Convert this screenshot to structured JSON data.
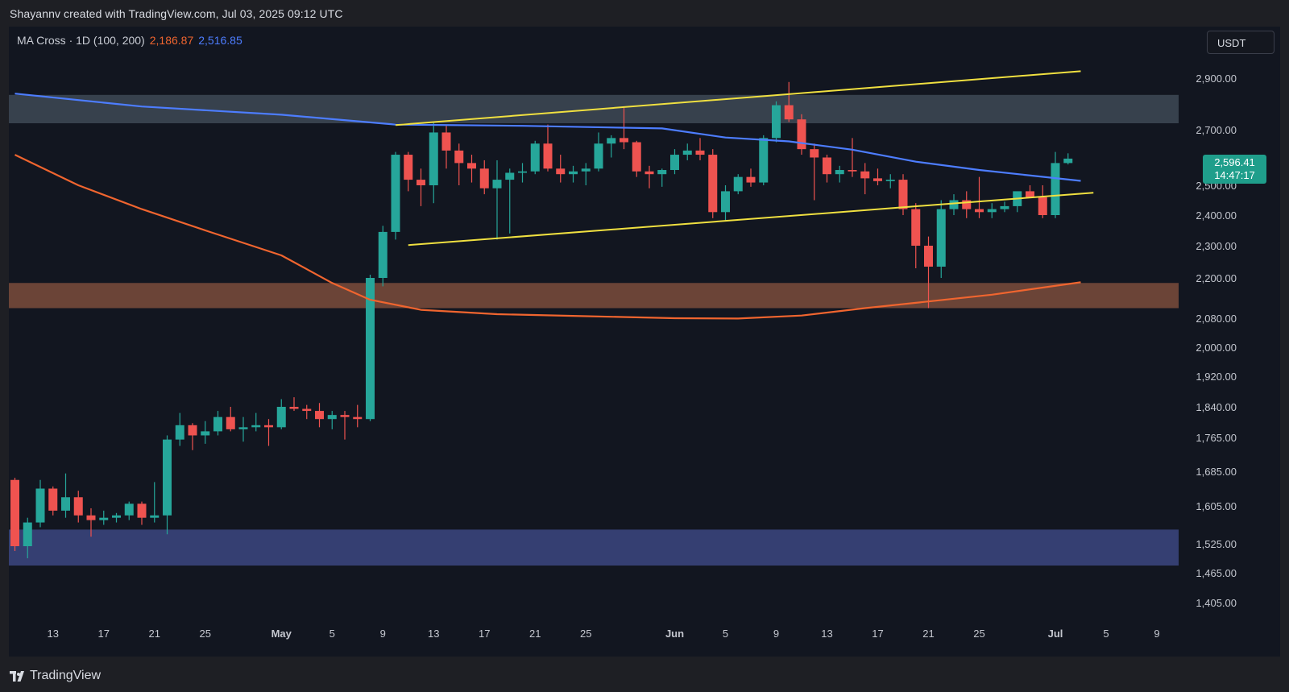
{
  "header": {
    "credit": "Shayannv created with TradingView.com, Jul 03, 2025 09:12 UTC"
  },
  "legend": {
    "indicator": "MA Cross · 1D (100, 200)",
    "ma100_value": "2,186.87",
    "ma200_value": "2,516.85",
    "ma100_color": "#f0652f",
    "ma200_color": "#4d7dff"
  },
  "currency_button": {
    "label": "USDT"
  },
  "price_tag": {
    "price": "2,596.41",
    "countdown": "14:47:17",
    "color": "#1f9e8b"
  },
  "footer": {
    "brand": "TradingView",
    "logo_icon": "tradingview-logo-icon"
  },
  "colors": {
    "up": "#26a69a",
    "down": "#ef5350",
    "background": "#121620",
    "upper_zone": "#37414d",
    "middle_zone": "#6b4437",
    "lower_zone": "#353f72",
    "channel_line": "#f0e040"
  },
  "chart_data": {
    "type": "candlestick",
    "symbol_quote": "USDT",
    "interval": "1D",
    "y_ticks": [
      2900,
      2700,
      2500,
      2400,
      2300,
      2200,
      2080,
      2000,
      1920,
      1840,
      1765,
      1685,
      1605,
      1525,
      1465,
      1405
    ],
    "y_tick_labels": [
      "2,900.00",
      "2,700.00",
      "2,500.00",
      "2,400.00",
      "2,300.00",
      "2,200.00",
      "2,080.00",
      "2,000.00",
      "1,920.00",
      "1,840.00",
      "1,765.00",
      "1,685.00",
      "1,605.00",
      "1,525.00",
      "1,465.00",
      "1,405.00"
    ],
    "x_ticks": [
      {
        "date": "2025-04-13",
        "label": "13"
      },
      {
        "date": "2025-04-17",
        "label": "17"
      },
      {
        "date": "2025-04-21",
        "label": "21"
      },
      {
        "date": "2025-04-25",
        "label": "25"
      },
      {
        "date": "2025-05-01",
        "label": "May"
      },
      {
        "date": "2025-05-05",
        "label": "5"
      },
      {
        "date": "2025-05-09",
        "label": "9"
      },
      {
        "date": "2025-05-13",
        "label": "13"
      },
      {
        "date": "2025-05-17",
        "label": "17"
      },
      {
        "date": "2025-05-21",
        "label": "21"
      },
      {
        "date": "2025-05-25",
        "label": "25"
      },
      {
        "date": "2025-06-01",
        "label": "Jun"
      },
      {
        "date": "2025-06-05",
        "label": "5"
      },
      {
        "date": "2025-06-09",
        "label": "9"
      },
      {
        "date": "2025-06-13",
        "label": "13"
      },
      {
        "date": "2025-06-17",
        "label": "17"
      },
      {
        "date": "2025-06-21",
        "label": "21"
      },
      {
        "date": "2025-06-25",
        "label": "25"
      },
      {
        "date": "2025-07-01",
        "label": "Jul"
      },
      {
        "date": "2025-07-05",
        "label": "5"
      },
      {
        "date": "2025-07-09",
        "label": "9"
      }
    ],
    "x_range": [
      "2025-04-10",
      "2025-07-12"
    ],
    "zones": [
      {
        "from": 2725,
        "to": 2835,
        "color": "#37414d"
      },
      {
        "from": 2110,
        "to": 2185,
        "color": "#6b4437"
      },
      {
        "from": 1480,
        "to": 1555,
        "color": "#353f72"
      }
    ],
    "channel_lines": [
      {
        "from": {
          "date": "2025-05-10",
          "price": 2718
        },
        "to": {
          "date": "2025-07-03",
          "price": 2927
        }
      },
      {
        "from": {
          "date": "2025-05-11",
          "price": 2302
        },
        "to": {
          "date": "2025-07-04",
          "price": 2475
        }
      }
    ],
    "ma200": [
      {
        "date": "2025-04-10",
        "value": 2840
      },
      {
        "date": "2025-04-20",
        "value": 2790
      },
      {
        "date": "2025-05-01",
        "value": 2758
      },
      {
        "date": "2025-05-10",
        "value": 2720
      },
      {
        "date": "2025-05-20",
        "value": 2715
      },
      {
        "date": "2025-05-31",
        "value": 2705
      },
      {
        "date": "2025-06-05",
        "value": 2672
      },
      {
        "date": "2025-06-10",
        "value": 2658
      },
      {
        "date": "2025-06-15",
        "value": 2628
      },
      {
        "date": "2025-06-20",
        "value": 2585
      },
      {
        "date": "2025-06-25",
        "value": 2555
      },
      {
        "date": "2025-07-03",
        "value": 2516
      }
    ],
    "ma100": [
      {
        "date": "2025-04-10",
        "value": 2610
      },
      {
        "date": "2025-04-15",
        "value": 2500
      },
      {
        "date": "2025-04-20",
        "value": 2420
      },
      {
        "date": "2025-04-25",
        "value": 2350
      },
      {
        "date": "2025-05-01",
        "value": 2270
      },
      {
        "date": "2025-05-05",
        "value": 2185
      },
      {
        "date": "2025-05-08",
        "value": 2135
      },
      {
        "date": "2025-05-12",
        "value": 2105
      },
      {
        "date": "2025-05-18",
        "value": 2092
      },
      {
        "date": "2025-05-25",
        "value": 2086
      },
      {
        "date": "2025-06-01",
        "value": 2080
      },
      {
        "date": "2025-06-06",
        "value": 2079
      },
      {
        "date": "2025-06-11",
        "value": 2088
      },
      {
        "date": "2025-06-16",
        "value": 2110
      },
      {
        "date": "2025-06-21",
        "value": 2130
      },
      {
        "date": "2025-06-26",
        "value": 2150
      },
      {
        "date": "2025-07-03",
        "value": 2187
      }
    ],
    "candles": [
      {
        "date": "2025-04-10",
        "open": 1665,
        "high": 1670,
        "low": 1510,
        "close": 1520
      },
      {
        "date": "2025-04-11",
        "open": 1520,
        "high": 1580,
        "low": 1495,
        "close": 1570
      },
      {
        "date": "2025-04-12",
        "open": 1570,
        "high": 1665,
        "low": 1560,
        "close": 1645
      },
      {
        "date": "2025-04-13",
        "open": 1645,
        "high": 1650,
        "low": 1585,
        "close": 1595
      },
      {
        "date": "2025-04-14",
        "open": 1595,
        "high": 1680,
        "low": 1580,
        "close": 1625
      },
      {
        "date": "2025-04-15",
        "open": 1625,
        "high": 1640,
        "low": 1570,
        "close": 1585
      },
      {
        "date": "2025-04-16",
        "open": 1585,
        "high": 1600,
        "low": 1540,
        "close": 1575
      },
      {
        "date": "2025-04-17",
        "open": 1575,
        "high": 1595,
        "low": 1565,
        "close": 1580
      },
      {
        "date": "2025-04-18",
        "open": 1580,
        "high": 1590,
        "low": 1570,
        "close": 1585
      },
      {
        "date": "2025-04-19",
        "open": 1585,
        "high": 1615,
        "low": 1575,
        "close": 1610
      },
      {
        "date": "2025-04-20",
        "open": 1610,
        "high": 1615,
        "low": 1565,
        "close": 1580
      },
      {
        "date": "2025-04-21",
        "open": 1580,
        "high": 1660,
        "low": 1570,
        "close": 1585
      },
      {
        "date": "2025-04-22",
        "open": 1585,
        "high": 1770,
        "low": 1545,
        "close": 1760
      },
      {
        "date": "2025-04-23",
        "open": 1760,
        "high": 1825,
        "low": 1745,
        "close": 1795
      },
      {
        "date": "2025-04-24",
        "open": 1795,
        "high": 1800,
        "low": 1735,
        "close": 1770
      },
      {
        "date": "2025-04-25",
        "open": 1770,
        "high": 1805,
        "low": 1750,
        "close": 1780
      },
      {
        "date": "2025-04-26",
        "open": 1780,
        "high": 1830,
        "low": 1770,
        "close": 1815
      },
      {
        "date": "2025-04-27",
        "open": 1815,
        "high": 1840,
        "low": 1780,
        "close": 1785
      },
      {
        "date": "2025-04-28",
        "open": 1785,
        "high": 1815,
        "low": 1755,
        "close": 1790
      },
      {
        "date": "2025-04-29",
        "open": 1790,
        "high": 1825,
        "low": 1780,
        "close": 1795
      },
      {
        "date": "2025-04-30",
        "open": 1795,
        "high": 1810,
        "low": 1745,
        "close": 1790
      },
      {
        "date": "2025-05-01",
        "open": 1790,
        "high": 1860,
        "low": 1785,
        "close": 1840
      },
      {
        "date": "2025-05-02",
        "open": 1840,
        "high": 1865,
        "low": 1830,
        "close": 1835
      },
      {
        "date": "2025-05-03",
        "open": 1835,
        "high": 1845,
        "low": 1810,
        "close": 1830
      },
      {
        "date": "2025-05-04",
        "open": 1830,
        "high": 1850,
        "low": 1790,
        "close": 1810
      },
      {
        "date": "2025-05-05",
        "open": 1810,
        "high": 1830,
        "low": 1785,
        "close": 1820
      },
      {
        "date": "2025-05-06",
        "open": 1820,
        "high": 1830,
        "low": 1760,
        "close": 1815
      },
      {
        "date": "2025-05-07",
        "open": 1815,
        "high": 1845,
        "low": 1790,
        "close": 1810
      },
      {
        "date": "2025-05-08",
        "open": 1810,
        "high": 2210,
        "low": 1805,
        "close": 2200
      },
      {
        "date": "2025-05-09",
        "open": 2200,
        "high": 2365,
        "low": 2175,
        "close": 2345
      },
      {
        "date": "2025-05-10",
        "open": 2345,
        "high": 2620,
        "low": 2320,
        "close": 2610
      },
      {
        "date": "2025-05-11",
        "open": 2610,
        "high": 2620,
        "low": 2480,
        "close": 2520
      },
      {
        "date": "2025-05-12",
        "open": 2520,
        "high": 2560,
        "low": 2430,
        "close": 2500
      },
      {
        "date": "2025-05-13",
        "open": 2500,
        "high": 2730,
        "low": 2440,
        "close": 2690
      },
      {
        "date": "2025-05-14",
        "open": 2690,
        "high": 2715,
        "low": 2560,
        "close": 2625
      },
      {
        "date": "2025-05-15",
        "open": 2625,
        "high": 2650,
        "low": 2500,
        "close": 2580
      },
      {
        "date": "2025-05-16",
        "open": 2580,
        "high": 2610,
        "low": 2510,
        "close": 2560
      },
      {
        "date": "2025-05-17",
        "open": 2560,
        "high": 2590,
        "low": 2470,
        "close": 2490
      },
      {
        "date": "2025-05-18",
        "open": 2490,
        "high": 2590,
        "low": 2320,
        "close": 2520
      },
      {
        "date": "2025-05-19",
        "open": 2520,
        "high": 2560,
        "low": 2340,
        "close": 2545
      },
      {
        "date": "2025-05-20",
        "open": 2545,
        "high": 2580,
        "low": 2510,
        "close": 2550
      },
      {
        "date": "2025-05-21",
        "open": 2550,
        "high": 2660,
        "low": 2540,
        "close": 2650
      },
      {
        "date": "2025-05-22",
        "open": 2650,
        "high": 2720,
        "low": 2550,
        "close": 2560
      },
      {
        "date": "2025-05-23",
        "open": 2560,
        "high": 2610,
        "low": 2510,
        "close": 2540
      },
      {
        "date": "2025-05-24",
        "open": 2540,
        "high": 2570,
        "low": 2510,
        "close": 2550
      },
      {
        "date": "2025-05-25",
        "open": 2550,
        "high": 2580,
        "low": 2500,
        "close": 2560
      },
      {
        "date": "2025-05-26",
        "open": 2560,
        "high": 2690,
        "low": 2550,
        "close": 2650
      },
      {
        "date": "2025-05-27",
        "open": 2650,
        "high": 2680,
        "low": 2600,
        "close": 2670
      },
      {
        "date": "2025-05-28",
        "open": 2670,
        "high": 2785,
        "low": 2630,
        "close": 2655
      },
      {
        "date": "2025-05-29",
        "open": 2655,
        "high": 2660,
        "low": 2530,
        "close": 2550
      },
      {
        "date": "2025-05-30",
        "open": 2550,
        "high": 2570,
        "low": 2490,
        "close": 2540
      },
      {
        "date": "2025-05-31",
        "open": 2540,
        "high": 2560,
        "low": 2495,
        "close": 2555
      },
      {
        "date": "2025-06-01",
        "open": 2555,
        "high": 2630,
        "low": 2540,
        "close": 2610
      },
      {
        "date": "2025-06-02",
        "open": 2610,
        "high": 2650,
        "low": 2590,
        "close": 2625
      },
      {
        "date": "2025-06-03",
        "open": 2625,
        "high": 2670,
        "low": 2590,
        "close": 2610
      },
      {
        "date": "2025-06-04",
        "open": 2610,
        "high": 2630,
        "low": 2390,
        "close": 2410
      },
      {
        "date": "2025-06-05",
        "open": 2410,
        "high": 2500,
        "low": 2380,
        "close": 2480
      },
      {
        "date": "2025-06-06",
        "open": 2480,
        "high": 2540,
        "low": 2470,
        "close": 2530
      },
      {
        "date": "2025-06-07",
        "open": 2530,
        "high": 2560,
        "low": 2495,
        "close": 2510
      },
      {
        "date": "2025-06-08",
        "open": 2510,
        "high": 2680,
        "low": 2500,
        "close": 2670
      },
      {
        "date": "2025-06-09",
        "open": 2670,
        "high": 2810,
        "low": 2655,
        "close": 2795
      },
      {
        "date": "2025-06-10",
        "open": 2795,
        "high": 2885,
        "low": 2730,
        "close": 2740
      },
      {
        "date": "2025-06-11",
        "open": 2740,
        "high": 2760,
        "low": 2610,
        "close": 2630
      },
      {
        "date": "2025-06-12",
        "open": 2630,
        "high": 2650,
        "low": 2450,
        "close": 2600
      },
      {
        "date": "2025-06-13",
        "open": 2600,
        "high": 2610,
        "low": 2510,
        "close": 2540
      },
      {
        "date": "2025-06-14",
        "open": 2540,
        "high": 2570,
        "low": 2510,
        "close": 2555
      },
      {
        "date": "2025-06-15",
        "open": 2555,
        "high": 2670,
        "low": 2530,
        "close": 2550
      },
      {
        "date": "2025-06-16",
        "open": 2550,
        "high": 2580,
        "low": 2470,
        "close": 2525
      },
      {
        "date": "2025-06-17",
        "open": 2525,
        "high": 2560,
        "low": 2500,
        "close": 2515
      },
      {
        "date": "2025-06-18",
        "open": 2515,
        "high": 2540,
        "low": 2490,
        "close": 2520
      },
      {
        "date": "2025-06-19",
        "open": 2520,
        "high": 2540,
        "low": 2400,
        "close": 2420
      },
      {
        "date": "2025-06-20",
        "open": 2420,
        "high": 2440,
        "low": 2230,
        "close": 2300
      },
      {
        "date": "2025-06-21",
        "open": 2300,
        "high": 2330,
        "low": 2110,
        "close": 2235
      },
      {
        "date": "2025-06-22",
        "open": 2235,
        "high": 2450,
        "low": 2200,
        "close": 2420
      },
      {
        "date": "2025-06-23",
        "open": 2420,
        "high": 2470,
        "low": 2400,
        "close": 2450
      },
      {
        "date": "2025-06-24",
        "open": 2450,
        "high": 2480,
        "low": 2390,
        "close": 2420
      },
      {
        "date": "2025-06-25",
        "open": 2420,
        "high": 2530,
        "low": 2390,
        "close": 2410
      },
      {
        "date": "2025-06-26",
        "open": 2410,
        "high": 2440,
        "low": 2390,
        "close": 2420
      },
      {
        "date": "2025-06-27",
        "open": 2420,
        "high": 2445,
        "low": 2410,
        "close": 2430
      },
      {
        "date": "2025-06-28",
        "open": 2430,
        "high": 2470,
        "low": 2410,
        "close": 2480
      },
      {
        "date": "2025-06-29",
        "open": 2480,
        "high": 2500,
        "low": 2460,
        "close": 2460
      },
      {
        "date": "2025-06-30",
        "open": 2460,
        "high": 2500,
        "low": 2390,
        "close": 2400
      },
      {
        "date": "2025-07-01",
        "open": 2400,
        "high": 2620,
        "low": 2390,
        "close": 2580
      },
      {
        "date": "2025-07-02",
        "open": 2580,
        "high": 2615,
        "low": 2575,
        "close": 2596
      }
    ]
  }
}
